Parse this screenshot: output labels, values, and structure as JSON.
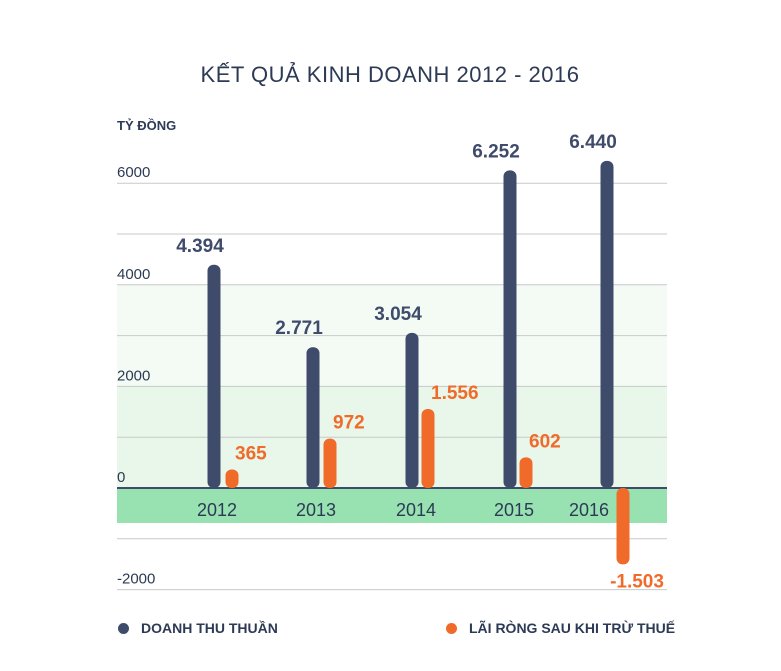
{
  "chart_data": {
    "type": "bar",
    "title": "KẾT QUẢ KINH DOANH 2012 - 2016",
    "ylabel": "TỶ ĐỒNG",
    "categories": [
      "2012",
      "2013",
      "2014",
      "2015",
      "2016"
    ],
    "series": [
      {
        "name": "DOANH THU THUẦN",
        "color": "#3f4b6b",
        "values": [
          4394,
          2771,
          3054,
          6252,
          6440
        ],
        "labels": [
          "4.394",
          "2.771",
          "3.054",
          "6.252",
          "6.440"
        ]
      },
      {
        "name": "LÃI RÒNG SAU KHI TRỪ THUẾ",
        "color": "#f06b2a",
        "values": [
          365,
          972,
          1556,
          602,
          -1503
        ],
        "labels": [
          "365",
          "972",
          "1.556",
          "602",
          "-1.503"
        ]
      }
    ],
    "yticks": [
      "6000",
      "4000",
      "2000",
      "0",
      "-2000"
    ],
    "ylim": [
      -2100,
      6700
    ]
  },
  "legend": {
    "item1": "DOANH THU THUẦN",
    "item2": "LÃI RÒNG SAU KHI TRỪ THUẾ"
  }
}
